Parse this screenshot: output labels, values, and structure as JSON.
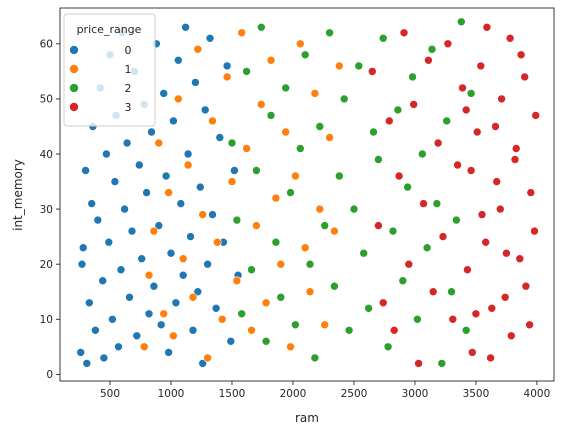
{
  "chart_data": {
    "type": "scatter",
    "title": "",
    "xlabel": "ram",
    "ylabel": "int_memory",
    "xlim": [
      90,
      4140
    ],
    "ylim": [
      -1.2,
      66.5
    ],
    "x_ticks": [
      500,
      1000,
      1500,
      2000,
      2500,
      3000,
      3500,
      4000
    ],
    "y_ticks": [
      0,
      10,
      20,
      30,
      40,
      50,
      60
    ],
    "grid": false,
    "legend": {
      "title": "price_range",
      "position": "top-left",
      "entries": [
        "0",
        "1",
        "2",
        "3"
      ]
    },
    "series": [
      {
        "name": "0",
        "color": "#1f77b4",
        "points": [
          [
            260,
            4
          ],
          [
            270,
            20
          ],
          [
            280,
            23
          ],
          [
            300,
            37
          ],
          [
            310,
            2
          ],
          [
            330,
            13
          ],
          [
            350,
            31
          ],
          [
            360,
            45
          ],
          [
            380,
            8
          ],
          [
            400,
            28
          ],
          [
            420,
            52
          ],
          [
            440,
            17
          ],
          [
            450,
            3
          ],
          [
            470,
            40
          ],
          [
            490,
            24
          ],
          [
            500,
            58
          ],
          [
            520,
            10
          ],
          [
            540,
            35
          ],
          [
            550,
            47
          ],
          [
            570,
            5
          ],
          [
            590,
            19
          ],
          [
            600,
            62
          ],
          [
            620,
            30
          ],
          [
            640,
            42
          ],
          [
            660,
            14
          ],
          [
            680,
            26
          ],
          [
            700,
            55
          ],
          [
            720,
            7
          ],
          [
            740,
            38
          ],
          [
            760,
            21
          ],
          [
            780,
            49
          ],
          [
            800,
            33
          ],
          [
            820,
            11
          ],
          [
            840,
            44
          ],
          [
            860,
            16
          ],
          [
            880,
            60
          ],
          [
            900,
            27
          ],
          [
            920,
            9
          ],
          [
            940,
            51
          ],
          [
            960,
            36
          ],
          [
            980,
            4
          ],
          [
            1000,
            22
          ],
          [
            1020,
            46
          ],
          [
            1040,
            13
          ],
          [
            1060,
            57
          ],
          [
            1080,
            31
          ],
          [
            1100,
            18
          ],
          [
            1120,
            63
          ],
          [
            1140,
            40
          ],
          [
            1160,
            25
          ],
          [
            1180,
            8
          ],
          [
            1200,
            53
          ],
          [
            1220,
            15
          ],
          [
            1240,
            34
          ],
          [
            1260,
            2
          ],
          [
            1280,
            48
          ],
          [
            1300,
            20
          ],
          [
            1320,
            61
          ],
          [
            1340,
            29
          ],
          [
            1370,
            12
          ],
          [
            1400,
            43
          ],
          [
            1430,
            24
          ],
          [
            1460,
            56
          ],
          [
            1490,
            6
          ],
          [
            1520,
            37
          ],
          [
            1550,
            18
          ]
        ]
      },
      {
        "name": "1",
        "color": "#ff7f0e",
        "points": [
          [
            780,
            5
          ],
          [
            820,
            18
          ],
          [
            860,
            26
          ],
          [
            900,
            42
          ],
          [
            940,
            11
          ],
          [
            980,
            33
          ],
          [
            1020,
            7
          ],
          [
            1060,
            50
          ],
          [
            1100,
            21
          ],
          [
            1140,
            38
          ],
          [
            1180,
            14
          ],
          [
            1220,
            59
          ],
          [
            1260,
            29
          ],
          [
            1300,
            3
          ],
          [
            1340,
            46
          ],
          [
            1380,
            24
          ],
          [
            1420,
            10
          ],
          [
            1460,
            54
          ],
          [
            1500,
            35
          ],
          [
            1540,
            17
          ],
          [
            1580,
            62
          ],
          [
            1620,
            41
          ],
          [
            1660,
            8
          ],
          [
            1700,
            27
          ],
          [
            1740,
            49
          ],
          [
            1780,
            13
          ],
          [
            1820,
            57
          ],
          [
            1860,
            32
          ],
          [
            1900,
            20
          ],
          [
            1940,
            44
          ],
          [
            1980,
            5
          ],
          [
            2020,
            36
          ],
          [
            2060,
            60
          ],
          [
            2100,
            23
          ],
          [
            2140,
            15
          ],
          [
            2180,
            51
          ],
          [
            2220,
            30
          ],
          [
            2260,
            9
          ],
          [
            2300,
            43
          ],
          [
            2340,
            26
          ],
          [
            2380,
            56
          ]
        ]
      },
      {
        "name": "2",
        "color": "#2ca02c",
        "points": [
          [
            1500,
            42
          ],
          [
            1540,
            28
          ],
          [
            1580,
            11
          ],
          [
            1620,
            55
          ],
          [
            1660,
            19
          ],
          [
            1700,
            37
          ],
          [
            1740,
            63
          ],
          [
            1780,
            6
          ],
          [
            1820,
            47
          ],
          [
            1860,
            24
          ],
          [
            1900,
            14
          ],
          [
            1940,
            52
          ],
          [
            1980,
            33
          ],
          [
            2020,
            9
          ],
          [
            2060,
            41
          ],
          [
            2100,
            58
          ],
          [
            2140,
            20
          ],
          [
            2180,
            3
          ],
          [
            2220,
            45
          ],
          [
            2260,
            27
          ],
          [
            2300,
            62
          ],
          [
            2340,
            16
          ],
          [
            2380,
            36
          ],
          [
            2420,
            50
          ],
          [
            2460,
            8
          ],
          [
            2500,
            30
          ],
          [
            2540,
            56
          ],
          [
            2580,
            22
          ],
          [
            2620,
            12
          ],
          [
            2660,
            44
          ],
          [
            2700,
            39
          ],
          [
            2740,
            61
          ],
          [
            2780,
            5
          ],
          [
            2820,
            26
          ],
          [
            2860,
            48
          ],
          [
            2900,
            17
          ],
          [
            2940,
            34
          ],
          [
            2980,
            54
          ],
          [
            3020,
            10
          ],
          [
            3060,
            40
          ],
          [
            3100,
            23
          ],
          [
            3140,
            59
          ],
          [
            3180,
            31
          ],
          [
            3220,
            2
          ],
          [
            3260,
            46
          ],
          [
            3300,
            15
          ],
          [
            3340,
            28
          ],
          [
            3380,
            64
          ],
          [
            3420,
            8
          ],
          [
            3460,
            51
          ]
        ]
      },
      {
        "name": "3",
        "color": "#d62728",
        "points": [
          [
            2650,
            55
          ],
          [
            2700,
            27
          ],
          [
            2740,
            13
          ],
          [
            2790,
            46
          ],
          [
            2830,
            8
          ],
          [
            2870,
            36
          ],
          [
            2910,
            62
          ],
          [
            2950,
            20
          ],
          [
            2990,
            49
          ],
          [
            3030,
            2
          ],
          [
            3070,
            31
          ],
          [
            3110,
            57
          ],
          [
            3150,
            15
          ],
          [
            3190,
            42
          ],
          [
            3230,
            25
          ],
          [
            3270,
            60
          ],
          [
            3310,
            10
          ],
          [
            3350,
            38
          ],
          [
            3390,
            52
          ],
          [
            3430,
            19
          ],
          [
            3470,
            4
          ],
          [
            3510,
            44
          ],
          [
            3550,
            29
          ],
          [
            3590,
            63
          ],
          [
            3630,
            12
          ],
          [
            3670,
            35
          ],
          [
            3710,
            50
          ],
          [
            3750,
            22
          ],
          [
            3790,
            7
          ],
          [
            3830,
            41
          ],
          [
            3870,
            58
          ],
          [
            3910,
            16
          ],
          [
            3950,
            33
          ],
          [
            3990,
            47
          ],
          [
            3980,
            26
          ],
          [
            3940,
            9
          ],
          [
            3900,
            54
          ],
          [
            3860,
            21
          ],
          [
            3820,
            39
          ],
          [
            3780,
            61
          ],
          [
            3740,
            14
          ],
          [
            3700,
            30
          ],
          [
            3660,
            45
          ],
          [
            3620,
            3
          ],
          [
            3580,
            24
          ],
          [
            3540,
            56
          ],
          [
            3500,
            11
          ],
          [
            3460,
            37
          ],
          [
            3420,
            48
          ]
        ]
      }
    ]
  }
}
